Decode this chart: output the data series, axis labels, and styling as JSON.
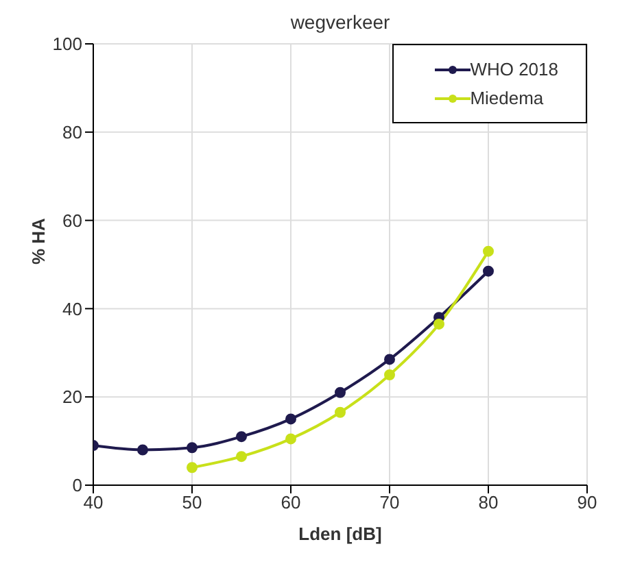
{
  "chart_data": {
    "type": "line",
    "title": "wegverkeer",
    "xlabel": "Lden [dB]",
    "ylabel": "% HA",
    "xlim": [
      40,
      90
    ],
    "xticks": [
      40,
      50,
      60,
      70,
      80,
      90
    ],
    "ylim": [
      0,
      100
    ],
    "yticks": [
      0,
      20,
      40,
      60,
      80,
      100
    ],
    "grid": true,
    "legend": "top right",
    "marker": "circle",
    "line_style": "solid",
    "series": [
      {
        "name": "WHO 2018",
        "color": "#1f1a4e",
        "x": [
          40,
          45,
          50,
          55,
          60,
          65,
          70,
          75,
          80
        ],
        "values": [
          9,
          8,
          8.5,
          11,
          15,
          21,
          28.5,
          38,
          48.5
        ]
      },
      {
        "name": "Miedema",
        "color": "#c8e01a",
        "x": [
          50,
          55,
          60,
          65,
          70,
          75,
          80
        ],
        "values": [
          4,
          6.5,
          10.5,
          16.5,
          25,
          36.5,
          53
        ]
      }
    ]
  }
}
